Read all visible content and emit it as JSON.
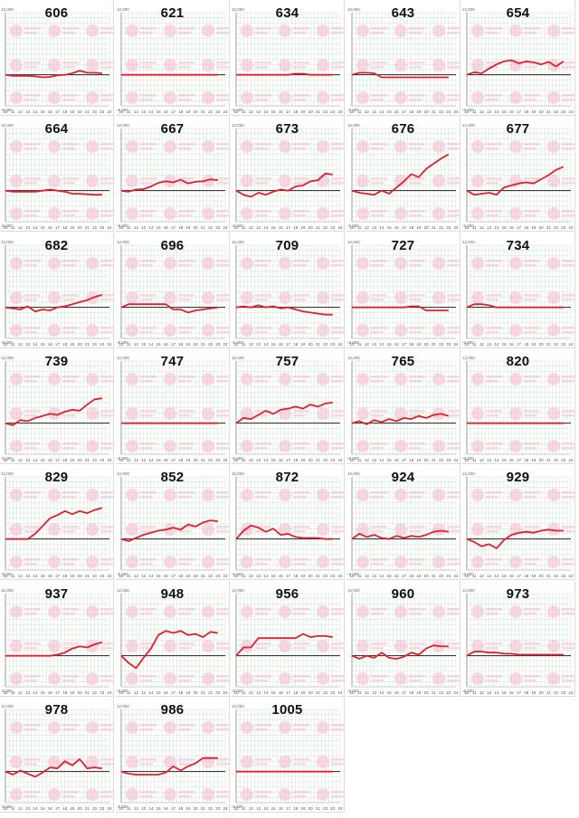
{
  "page": {
    "panel_count": 33
  },
  "style": {
    "line_color": "#e0202e",
    "zero_line_color": "#222222",
    "grid_color": "#cfe3cf",
    "watermark_color": "#f7b3cf"
  },
  "axis": {
    "y_top_label": "12,000",
    "y_bottom_label": "-6,000",
    "x_ticks": [
      "10",
      "11",
      "12",
      "13",
      "14",
      "15",
      "16",
      "17",
      "18",
      "19",
      "20",
      "21",
      "22",
      "23",
      "24"
    ]
  },
  "chart_data": [
    {
      "type": "line",
      "title": "606",
      "x": [
        10,
        11,
        12,
        13,
        14,
        15,
        16,
        17,
        18,
        19,
        20,
        21,
        22,
        23
      ],
      "y": [
        0,
        -200,
        -200,
        -200,
        -300,
        -500,
        -400,
        -100,
        0,
        300,
        800,
        400,
        400,
        300
      ]
    },
    {
      "type": "line",
      "title": "621",
      "x": [
        10,
        11,
        12,
        13,
        14,
        15,
        16,
        17,
        18,
        19,
        20,
        21,
        22,
        23
      ],
      "y": [
        0,
        0,
        0,
        0,
        0,
        0,
        0,
        0,
        0,
        0,
        0,
        0,
        0,
        0
      ]
    },
    {
      "type": "line",
      "title": "634",
      "x": [
        10,
        11,
        12,
        13,
        14,
        15,
        16,
        17,
        18,
        19,
        20,
        21,
        22,
        23
      ],
      "y": [
        0,
        0,
        0,
        0,
        0,
        0,
        0,
        0,
        200,
        200,
        0,
        0,
        0,
        0
      ]
    },
    {
      "type": "line",
      "title": "643",
      "x": [
        10,
        11,
        12,
        13,
        14,
        15,
        16,
        17,
        18,
        19,
        20,
        21,
        22,
        23
      ],
      "y": [
        0,
        400,
        400,
        300,
        -500,
        -500,
        -500,
        -500,
        -500,
        -500,
        -500,
        -500,
        -500,
        -500
      ]
    },
    {
      "type": "line",
      "title": "654",
      "x": [
        10,
        11,
        12,
        13,
        14,
        15,
        16,
        17,
        18,
        19,
        20,
        21,
        22,
        23
      ],
      "y": [
        0,
        500,
        300,
        1200,
        2000,
        2600,
        2800,
        2200,
        2600,
        2400,
        2000,
        2500,
        1600,
        2600
      ]
    },
    {
      "type": "line",
      "title": "664",
      "x": [
        10,
        11,
        12,
        13,
        14,
        15,
        16,
        17,
        18,
        19,
        20,
        21,
        22,
        23
      ],
      "y": [
        0,
        -200,
        -200,
        -200,
        -200,
        0,
        200,
        0,
        -200,
        -600,
        -600,
        -700,
        -800,
        -800
      ]
    },
    {
      "type": "line",
      "title": "667",
      "x": [
        10,
        11,
        12,
        13,
        14,
        15,
        16,
        17,
        18,
        19,
        20,
        21,
        22,
        23
      ],
      "y": [
        0,
        -200,
        200,
        300,
        800,
        1500,
        1800,
        1600,
        2100,
        1400,
        1700,
        1800,
        2200,
        2000
      ]
    },
    {
      "type": "line",
      "title": "673",
      "x": [
        10,
        11,
        12,
        13,
        14,
        15,
        16,
        17,
        18,
        19,
        20,
        21,
        22,
        23
      ],
      "y": [
        0,
        -800,
        -1200,
        -400,
        -800,
        -200,
        200,
        0,
        800,
        1000,
        1800,
        2000,
        3300,
        3100
      ]
    },
    {
      "type": "line",
      "title": "676",
      "x": [
        10,
        11,
        12,
        13,
        14,
        15,
        16,
        17,
        18,
        19,
        20,
        21,
        22,
        23
      ],
      "y": [
        0,
        -400,
        -600,
        -800,
        0,
        -600,
        600,
        1800,
        3200,
        2600,
        4200,
        5200,
        6200,
        7000
      ]
    },
    {
      "type": "line",
      "title": "677",
      "x": [
        10,
        11,
        12,
        13,
        14,
        15,
        16,
        17,
        18,
        19,
        20,
        21,
        22,
        23
      ],
      "y": [
        0,
        -800,
        -600,
        -400,
        -800,
        600,
        1000,
        1400,
        1600,
        1400,
        2200,
        3000,
        4000,
        4600
      ]
    },
    {
      "type": "line",
      "title": "682",
      "x": [
        10,
        11,
        12,
        13,
        14,
        15,
        16,
        17,
        18,
        19,
        20,
        21,
        22,
        23
      ],
      "y": [
        0,
        -200,
        -400,
        200,
        -800,
        -400,
        -600,
        0,
        200,
        600,
        1000,
        1400,
        2000,
        2400
      ]
    },
    {
      "type": "line",
      "title": "696",
      "x": [
        10,
        11,
        12,
        13,
        14,
        15,
        16,
        17,
        18,
        19,
        20,
        21,
        22,
        23
      ],
      "y": [
        0,
        600,
        600,
        600,
        600,
        600,
        600,
        -400,
        -400,
        -1000,
        -600,
        -400,
        -200,
        0
      ]
    },
    {
      "type": "line",
      "title": "709",
      "x": [
        10,
        11,
        12,
        13,
        14,
        15,
        16,
        17,
        18,
        19,
        20,
        21,
        22,
        23
      ],
      "y": [
        0,
        200,
        0,
        400,
        0,
        200,
        -200,
        0,
        -400,
        -800,
        -1000,
        -1200,
        -1400,
        -1400
      ]
    },
    {
      "type": "line",
      "title": "727",
      "x": [
        10,
        11,
        12,
        13,
        14,
        15,
        16,
        17,
        18,
        19,
        20,
        21,
        22,
        23
      ],
      "y": [
        0,
        0,
        0,
        0,
        0,
        0,
        0,
        0,
        200,
        200,
        -600,
        -600,
        -600,
        -600
      ]
    },
    {
      "type": "line",
      "title": "734",
      "x": [
        10,
        11,
        12,
        13,
        14,
        15,
        16,
        17,
        18,
        19,
        20,
        21,
        22,
        23
      ],
      "y": [
        0,
        600,
        600,
        400,
        0,
        0,
        0,
        0,
        0,
        0,
        0,
        0,
        0,
        0
      ]
    },
    {
      "type": "line",
      "title": "739",
      "x": [
        10,
        11,
        12,
        13,
        14,
        15,
        16,
        17,
        18,
        19,
        20,
        21,
        22,
        23
      ],
      "y": [
        0,
        -400,
        600,
        400,
        1000,
        1400,
        1800,
        1600,
        2200,
        2600,
        2400,
        3600,
        4600,
        4800
      ]
    },
    {
      "type": "line",
      "title": "747",
      "x": [
        10,
        11,
        12,
        13,
        14,
        15,
        16,
        17,
        18,
        19,
        20,
        21,
        22,
        23
      ],
      "y": [
        0,
        0,
        0,
        0,
        0,
        0,
        0,
        0,
        0,
        0,
        0,
        0,
        0,
        0
      ]
    },
    {
      "type": "line",
      "title": "757",
      "x": [
        10,
        11,
        12,
        13,
        14,
        15,
        16,
        17,
        18,
        19,
        20,
        21,
        22,
        23
      ],
      "y": [
        0,
        1000,
        800,
        1600,
        2400,
        1800,
        2600,
        2800,
        3200,
        2800,
        3600,
        3200,
        3800,
        4000
      ]
    },
    {
      "type": "line",
      "title": "765",
      "x": [
        10,
        11,
        12,
        13,
        14,
        15,
        16,
        17,
        18,
        19,
        20,
        21,
        22,
        23
      ],
      "y": [
        0,
        400,
        -200,
        600,
        200,
        800,
        400,
        1000,
        800,
        1400,
        1000,
        1600,
        1800,
        1400
      ]
    },
    {
      "type": "line",
      "title": "820",
      "x": [
        10,
        11,
        12,
        13,
        14,
        15,
        16,
        17,
        18,
        19,
        20,
        21,
        22,
        23
      ],
      "y": [
        0,
        0,
        0,
        0,
        0,
        0,
        0,
        0,
        0,
        0,
        0,
        0,
        0,
        0
      ]
    },
    {
      "type": "line",
      "title": "829",
      "x": [
        10,
        11,
        12,
        13,
        14,
        15,
        16,
        17,
        18,
        19,
        20,
        21,
        22,
        23
      ],
      "y": [
        0,
        0,
        0,
        0,
        1000,
        2500,
        4000,
        4600,
        5400,
        4800,
        5400,
        5000,
        5600,
        6000
      ]
    },
    {
      "type": "line",
      "title": "852",
      "x": [
        10,
        11,
        12,
        13,
        14,
        15,
        16,
        17,
        18,
        19,
        20,
        21,
        22,
        23
      ],
      "y": [
        0,
        -400,
        200,
        800,
        1200,
        1600,
        1800,
        2200,
        1800,
        2800,
        2400,
        3200,
        3600,
        3400
      ]
    },
    {
      "type": "line",
      "title": "872",
      "x": [
        10,
        11,
        12,
        13,
        14,
        15,
        16,
        17,
        18,
        19,
        20,
        21,
        22,
        23
      ],
      "y": [
        0,
        1600,
        2600,
        2200,
        1400,
        2000,
        800,
        1000,
        400,
        200,
        200,
        200,
        0,
        0
      ]
    },
    {
      "type": "line",
      "title": "924",
      "x": [
        10,
        11,
        12,
        13,
        14,
        15,
        16,
        17,
        18,
        19,
        20,
        21,
        22,
        23
      ],
      "y": [
        0,
        1000,
        400,
        800,
        200,
        0,
        600,
        200,
        600,
        400,
        800,
        1400,
        1600,
        1400
      ]
    },
    {
      "type": "line",
      "title": "929",
      "x": [
        10,
        11,
        12,
        13,
        14,
        15,
        16,
        17,
        18,
        19,
        20,
        21,
        22,
        23
      ],
      "y": [
        0,
        -600,
        -1400,
        -1000,
        -1800,
        -200,
        800,
        1200,
        1400,
        1200,
        1600,
        1800,
        1600,
        1600
      ]
    },
    {
      "type": "line",
      "title": "937",
      "x": [
        10,
        11,
        12,
        13,
        14,
        15,
        16,
        17,
        18,
        19,
        20,
        21,
        22,
        23
      ],
      "y": [
        0,
        0,
        0,
        0,
        0,
        0,
        0,
        200,
        600,
        1400,
        1800,
        1600,
        2200,
        2600
      ]
    },
    {
      "type": "line",
      "title": "948",
      "x": [
        10,
        11,
        12,
        13,
        14,
        15,
        16,
        17,
        18,
        19,
        20,
        21,
        22,
        23
      ],
      "y": [
        0,
        -1400,
        -2400,
        -400,
        1400,
        4000,
        4800,
        4400,
        4800,
        4000,
        4200,
        3600,
        4600,
        4400
      ]
    },
    {
      "type": "line",
      "title": "956",
      "x": [
        10,
        11,
        12,
        13,
        14,
        15,
        16,
        17,
        18,
        19,
        20,
        21,
        22,
        23
      ],
      "y": [
        0,
        1600,
        1600,
        3400,
        3400,
        3400,
        3400,
        3400,
        3400,
        4200,
        3600,
        3800,
        3800,
        3600
      ]
    },
    {
      "type": "line",
      "title": "960",
      "x": [
        10,
        11,
        12,
        13,
        14,
        15,
        16,
        17,
        18,
        19,
        20,
        21,
        22,
        23
      ],
      "y": [
        0,
        -600,
        0,
        -400,
        600,
        -400,
        -600,
        -200,
        600,
        200,
        1400,
        2000,
        1800,
        1800
      ]
    },
    {
      "type": "line",
      "title": "973",
      "x": [
        10,
        11,
        12,
        13,
        14,
        15,
        16,
        17,
        18,
        19,
        20,
        21,
        22,
        23
      ],
      "y": [
        0,
        800,
        800,
        600,
        600,
        400,
        400,
        200,
        200,
        200,
        200,
        200,
        200,
        200
      ]
    },
    {
      "type": "line",
      "title": "978",
      "x": [
        10,
        11,
        12,
        13,
        14,
        15,
        16,
        17,
        18,
        19,
        20,
        21,
        22,
        23
      ],
      "y": [
        0,
        -600,
        200,
        -400,
        -1000,
        -200,
        800,
        600,
        2000,
        1200,
        2400,
        600,
        800,
        600
      ]
    },
    {
      "type": "line",
      "title": "986",
      "x": [
        10,
        11,
        12,
        13,
        14,
        15,
        16,
        17,
        18,
        19,
        20,
        21,
        22,
        23
      ],
      "y": [
        0,
        -400,
        -600,
        -600,
        -600,
        -600,
        -200,
        1000,
        200,
        1000,
        1600,
        2600,
        2600,
        2600
      ]
    },
    {
      "type": "line",
      "title": "1005",
      "x": [
        10,
        11,
        12,
        13,
        14,
        15,
        16,
        17,
        18,
        19,
        20,
        21,
        22,
        23
      ],
      "y": [
        0,
        0,
        0,
        0,
        0,
        0,
        0,
        0,
        0,
        0,
        0,
        0,
        0,
        0
      ]
    }
  ]
}
